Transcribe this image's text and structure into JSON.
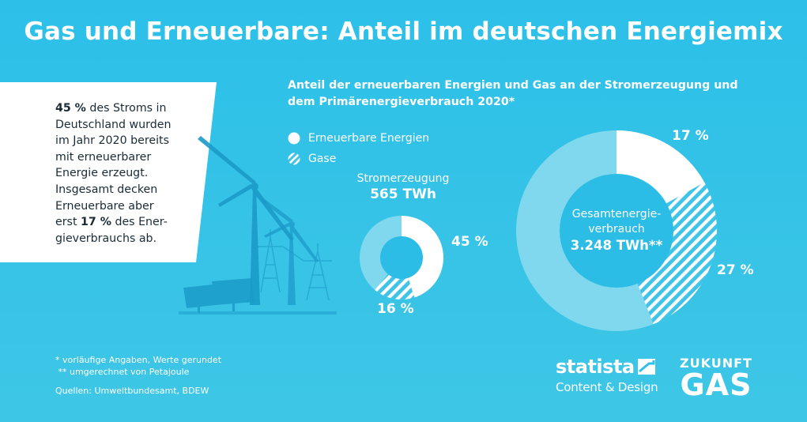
{
  "title": "Gas und Erneuerbare: Anteil im deutschen Energiemix",
  "infobox": {
    "lines": [
      [
        {
          "t": "45 %",
          "b": true
        },
        {
          "t": " des Stroms in",
          "b": false
        }
      ],
      [
        {
          "t": "Deutschland wurden",
          "b": false
        }
      ],
      [
        {
          "t": "im Jahr 2020 bereits",
          "b": false
        }
      ],
      [
        {
          "t": "mit erneuerbarer",
          "b": false
        }
      ],
      [
        {
          "t": "Energie erzeugt.",
          "b": false
        }
      ],
      [
        {
          "t": "Insgesamt decken",
          "b": false
        }
      ],
      [
        {
          "t": "Erneuerbare aber",
          "b": false
        }
      ],
      [
        {
          "t": "erst ",
          "b": false
        },
        {
          "t": "17 %",
          "b": true
        },
        {
          "t": " des Ener-",
          "b": false
        }
      ],
      [
        {
          "t": "gieverbrauchs ab.",
          "b": false
        }
      ]
    ]
  },
  "subtitle_line1": "Anteil der erneuerbaren Energien und Gas an der Stromerzeugung und",
  "subtitle_line2": "dem Primärenergieverbrauch 2020*",
  "chart_data": [
    {
      "type": "pie",
      "title_line1": "Stromerzeugung",
      "title_line2": "565 TWh",
      "slices": [
        {
          "name": "Erneuerbare Energien",
          "value": 45,
          "label": "45 %"
        },
        {
          "name": "Gase",
          "value": 16,
          "label": "16 %"
        }
      ],
      "legend": [
        "Erneuerbare Energien",
        "Gase"
      ]
    },
    {
      "type": "pie",
      "title_line1": "Gesamtenergie-",
      "title_line2": "verbrauch",
      "title_line3": "3.248 TWh**",
      "slices": [
        {
          "name": "Erneuerbare Energien",
          "value": 17,
          "label": "17 %"
        },
        {
          "name": "Gase",
          "value": 27,
          "label": "27 %"
        }
      ]
    }
  ],
  "footnote1": "* vorläufige Angaben, Werte gerundet",
  "footnote2": " ** umgerechnet von Petajoule",
  "source": "Quellen: Umweltbundesamt, BDEW",
  "statista_name": "statista",
  "statista_sub": "Content & Design",
  "zukunft_top": "ZUKUNFT",
  "zukunft_bottom": "GAS",
  "colors": {
    "ring_light": "#7fd8ee",
    "ring_inner": "#2bbde6",
    "white": "#ffffff",
    "illustration": "#1a9cc9"
  }
}
